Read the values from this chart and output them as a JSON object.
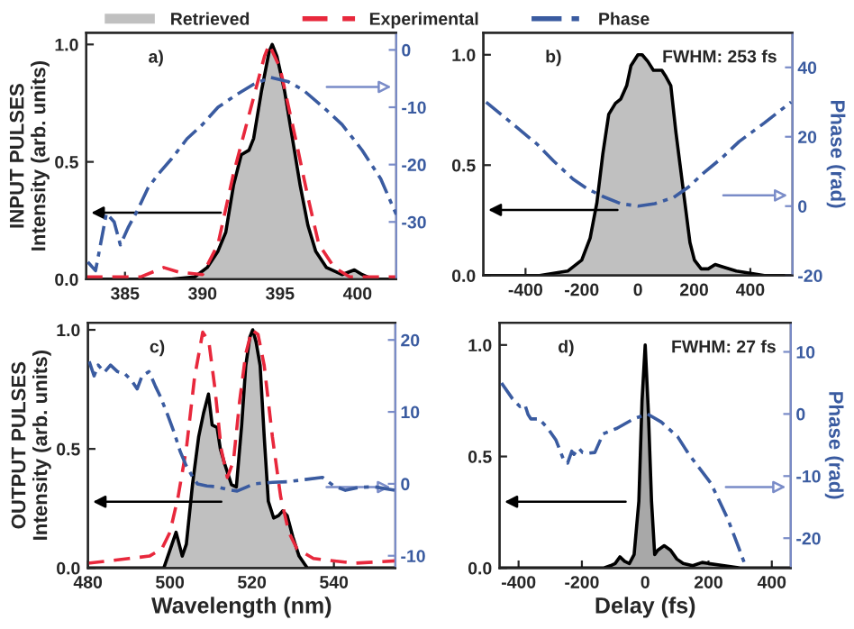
{
  "chart_data": [
    {
      "type": "line",
      "ylabel": "INPUT PULSES\nIntensity (arb. units)",
      "xlim": [
        382.5,
        402.5
      ],
      "xticks": [
        385,
        390,
        395,
        400
      ],
      "ylim": [
        0,
        1.05
      ],
      "yticks": [
        {
          "value": 0,
          "label": "0.0"
        },
        {
          "value": 0.5,
          "label": "0.5"
        },
        {
          "value": 1,
          "label": "1.0"
        }
      ],
      "y2lim": [
        -40,
        3
      ],
      "y2ticks": [
        0,
        -10,
        -20,
        -30
      ],
      "legend": "top",
      "grid": false,
      "annotations": [
        "a)"
      ],
      "series": [
        {
          "name": "Retrieved",
          "type": "area",
          "color": "#c0c0c0",
          "x": [
            382.5,
            388,
            389.5,
            390.3,
            391,
            391.5,
            392,
            392.5,
            393,
            393.3,
            393.8,
            394.3,
            394.5,
            394.8,
            395.3,
            395.8,
            396.3,
            396.8,
            397.3,
            398,
            399,
            399.8,
            400.3,
            401,
            402.5
          ],
          "values": [
            0,
            0,
            0.01,
            0.05,
            0.12,
            0.2,
            0.4,
            0.53,
            0.55,
            0.6,
            0.8,
            0.97,
            1.0,
            0.95,
            0.8,
            0.6,
            0.4,
            0.23,
            0.12,
            0.05,
            0.02,
            0.04,
            0.02,
            0,
            0
          ]
        },
        {
          "name": "Experimental",
          "type": "line",
          "line_style": "dashed",
          "color": "#e8283c",
          "x": [
            382.5,
            386,
            387.5,
            388.5,
            390,
            391,
            392,
            393,
            394,
            394.3,
            395,
            396,
            396.8,
            397.5,
            398.5,
            399.5,
            402.5
          ],
          "values": [
            0.01,
            0.01,
            0.05,
            0.03,
            0.02,
            0.15,
            0.45,
            0.7,
            0.95,
            1.0,
            0.9,
            0.6,
            0.35,
            0.15,
            0.05,
            0.01,
            0.01
          ]
        },
        {
          "name": "Phase",
          "type": "line",
          "axis": "y2",
          "line_style": "dashdot",
          "color": "#3a5ba0",
          "x": [
            382.6,
            383.1,
            383.8,
            384.3,
            384.7,
            385.2,
            385.8,
            386.5,
            387.2,
            388,
            389,
            390,
            391,
            392.2,
            393.3,
            394.4,
            395.5,
            396.5,
            398,
            399,
            400.3,
            401.5,
            402.5
          ],
          "values": [
            -37,
            -38.5,
            -28.5,
            -30,
            -34,
            -31,
            -28,
            -24,
            -21.5,
            -19,
            -15.5,
            -13,
            -10,
            -7.8,
            -6,
            -4.8,
            -5.5,
            -7,
            -10.5,
            -13,
            -17.5,
            -22.5,
            -28.7
          ]
        }
      ]
    },
    {
      "type": "line",
      "y2label": "Phase (rad)",
      "xlim": [
        -550,
        550
      ],
      "xticks": [
        -400,
        -200,
        0,
        200,
        400
      ],
      "ylim": [
        0,
        1.1
      ],
      "yticks": [
        {
          "value": 0,
          "label": "0.0"
        },
        {
          "value": 0.5,
          "label": "0.5"
        },
        {
          "value": 1,
          "label": "1.0"
        }
      ],
      "y2lim": [
        -20,
        50
      ],
      "y2ticks": [
        40,
        20,
        0,
        -20
      ],
      "grid": false,
      "annotations": [
        "b)",
        "FWHM: 253 fs"
      ],
      "series": [
        {
          "type": "area",
          "color": "#c0c0c0",
          "x": [
            -550,
            -350,
            -300,
            -250,
            -200,
            -170,
            -146,
            -125,
            -104,
            -80,
            -61,
            -40,
            -25,
            0,
            15,
            35,
            55,
            85,
            100,
            117,
            135,
            150,
            170,
            185,
            201,
            225,
            250,
            275,
            300,
            350,
            400,
            450,
            550
          ],
          "values": [
            0,
            0,
            0.01,
            0.02,
            0.07,
            0.17,
            0.33,
            0.55,
            0.73,
            0.78,
            0.8,
            0.86,
            0.95,
            1.0,
            1.0,
            0.97,
            0.93,
            0.93,
            0.9,
            0.86,
            0.65,
            0.5,
            0.3,
            0.15,
            0.07,
            0.03,
            0.03,
            0.05,
            0.04,
            0.02,
            0.01,
            0,
            0
          ]
        },
        {
          "type": "line",
          "axis": "y2",
          "line_style": "dashdot",
          "color": "#3a5ba0",
          "x": [
            -540,
            -450,
            -358,
            -300,
            -231,
            -180,
            -125,
            -60,
            0,
            60,
            127,
            180,
            233,
            300,
            360,
            450,
            545
          ],
          "values": [
            30,
            24,
            17.8,
            13,
            7.8,
            5,
            2.8,
            0.7,
            0,
            0.7,
            2.5,
            5.5,
            9.5,
            14,
            18.6,
            24,
            30
          ]
        }
      ]
    },
    {
      "type": "line",
      "ylabel": "OUTPUT PULSES\nIntensity (arb. units)",
      "xlabel": "Wavelength (nm)",
      "xlim": [
        480,
        555
      ],
      "xticks": [
        480,
        500,
        520,
        540
      ],
      "ylim": [
        0,
        1.03
      ],
      "yticks": [
        {
          "value": 0,
          "label": "0.0"
        },
        {
          "value": 0.5,
          "label": "0.5"
        },
        {
          "value": 1,
          "label": "1.0"
        }
      ],
      "y2lim": [
        -11.7,
        22.4
      ],
      "y2ticks": [
        20,
        10,
        0,
        -10
      ],
      "grid": false,
      "annotations": [
        "c)"
      ],
      "series": [
        {
          "type": "area",
          "color": "#c0c0c0",
          "x": [
            480,
            498.5,
            499.5,
            501.5,
            503,
            504,
            505.5,
            507,
            508.2,
            509.4,
            510.3,
            511.5,
            512.3,
            513.3,
            515,
            516.2,
            517.5,
            518.5,
            519.5,
            520.2,
            521,
            522,
            523,
            524,
            525.3,
            526.5,
            527.5,
            528.6,
            530,
            531.5,
            533.5,
            555
          ],
          "values": [
            0,
            0,
            0.05,
            0.15,
            0.05,
            0.1,
            0.35,
            0.55,
            0.65,
            0.73,
            0.6,
            0.59,
            0.5,
            0.44,
            0.35,
            0.34,
            0.6,
            0.85,
            0.97,
            1.0,
            0.95,
            0.85,
            0.55,
            0.28,
            0.21,
            0.22,
            0.24,
            0.22,
            0.13,
            0.05,
            0,
            0
          ]
        },
        {
          "type": "line",
          "line_style": "dashed",
          "color": "#e8283c",
          "x": [
            480,
            485,
            490,
            495,
            498,
            500,
            502,
            504,
            506,
            508,
            509.5,
            511,
            512.5,
            514,
            515.5,
            517,
            518.5,
            520,
            521.5,
            523,
            525,
            527,
            529,
            531,
            535,
            545,
            555
          ],
          "values": [
            0.02,
            0.03,
            0.04,
            0.05,
            0.08,
            0.15,
            0.3,
            0.5,
            0.8,
            0.99,
            0.95,
            0.75,
            0.5,
            0.38,
            0.45,
            0.7,
            0.9,
            1.0,
            0.98,
            0.85,
            0.55,
            0.3,
            0.15,
            0.08,
            0.04,
            0.02,
            0.03
          ]
        },
        {
          "type": "line",
          "axis": "y2",
          "line_style": "dashdot",
          "color": "#3a5ba0",
          "x": [
            480.3,
            481.5,
            482.5,
            484,
            485.5,
            487.2,
            489,
            490.7,
            492,
            493.2,
            494.9,
            496.5,
            497.6,
            499.5,
            501.1,
            502.5,
            503.9,
            505.5,
            506.7,
            509,
            511.5,
            514,
            516.4,
            518.5,
            520.6,
            525,
            528.9,
            533,
            537.2,
            540,
            542.8,
            546,
            549.7,
            555
          ],
          "values": [
            17,
            15,
            16.5,
            15.5,
            16.5,
            15.6,
            15.3,
            14.3,
            13.2,
            15,
            15.6,
            13.5,
            12.2,
            9.5,
            7,
            4.5,
            2.6,
            1,
            0,
            -0.3,
            -0.4,
            -0.8,
            -1,
            -0.5,
            0,
            0.2,
            0.3,
            0.6,
            0.9,
            -0.3,
            -0.9,
            -0.5,
            -0.4,
            -0.9
          ]
        }
      ]
    },
    {
      "type": "line",
      "xlabel": "Delay (fs)",
      "y2label": "Phase (rad)",
      "xlim": [
        -460,
        460
      ],
      "xticks": [
        -400,
        -200,
        0,
        200,
        400
      ],
      "ylim": [
        0,
        1.1
      ],
      "yticks": [
        {
          "value": 0,
          "label": "0.0"
        },
        {
          "value": 0.5,
          "label": "0.5"
        },
        {
          "value": 1,
          "label": "1.0"
        }
      ],
      "y2lim": [
        -24.8,
        14.7
      ],
      "y2ticks": [
        10,
        0,
        -10,
        -20
      ],
      "grid": false,
      "annotations": [
        "d)",
        "FWHM: 27 fs"
      ],
      "series": [
        {
          "type": "area",
          "color": "#a8a8a8",
          "x": [
            -460,
            -130,
            -110,
            -95,
            -80,
            -65,
            -50,
            -35,
            -20,
            -10,
            0,
            10,
            20,
            30,
            40,
            60,
            80,
            100,
            120,
            150,
            180,
            200,
            250,
            300,
            460
          ],
          "values": [
            0,
            0,
            0.01,
            0.02,
            0.05,
            0.03,
            0.02,
            0.06,
            0.3,
            0.75,
            1.0,
            0.7,
            0.3,
            0.06,
            0.08,
            0.1,
            0.08,
            0.04,
            0.02,
            0.01,
            0.025,
            0.02,
            0.01,
            0,
            0
          ]
        },
        {
          "type": "line",
          "axis": "y2",
          "line_style": "dashdot",
          "color": "#3a5ba0",
          "x": [
            -454,
            -420,
            -396,
            -380,
            -370,
            -361,
            -335,
            -308,
            -282,
            -256,
            -245,
            -232,
            -225,
            -210,
            -198,
            -177,
            -159,
            -133,
            -89,
            -37,
            7,
            51,
            103,
            138,
            208,
            261,
            296,
            319
          ],
          "values": [
            5,
            2.5,
            1.2,
            1.5,
            -0.1,
            -0.8,
            -0.8,
            -2.3,
            -4.2,
            -7.6,
            -7.9,
            -6,
            -6.5,
            -5.5,
            -6.2,
            -6.3,
            -6.2,
            -3.2,
            -2.3,
            -0.8,
            0,
            -1.3,
            -3.7,
            -6.5,
            -11.2,
            -16.9,
            -21.6,
            -24.8
          ]
        }
      ]
    }
  ]
}
